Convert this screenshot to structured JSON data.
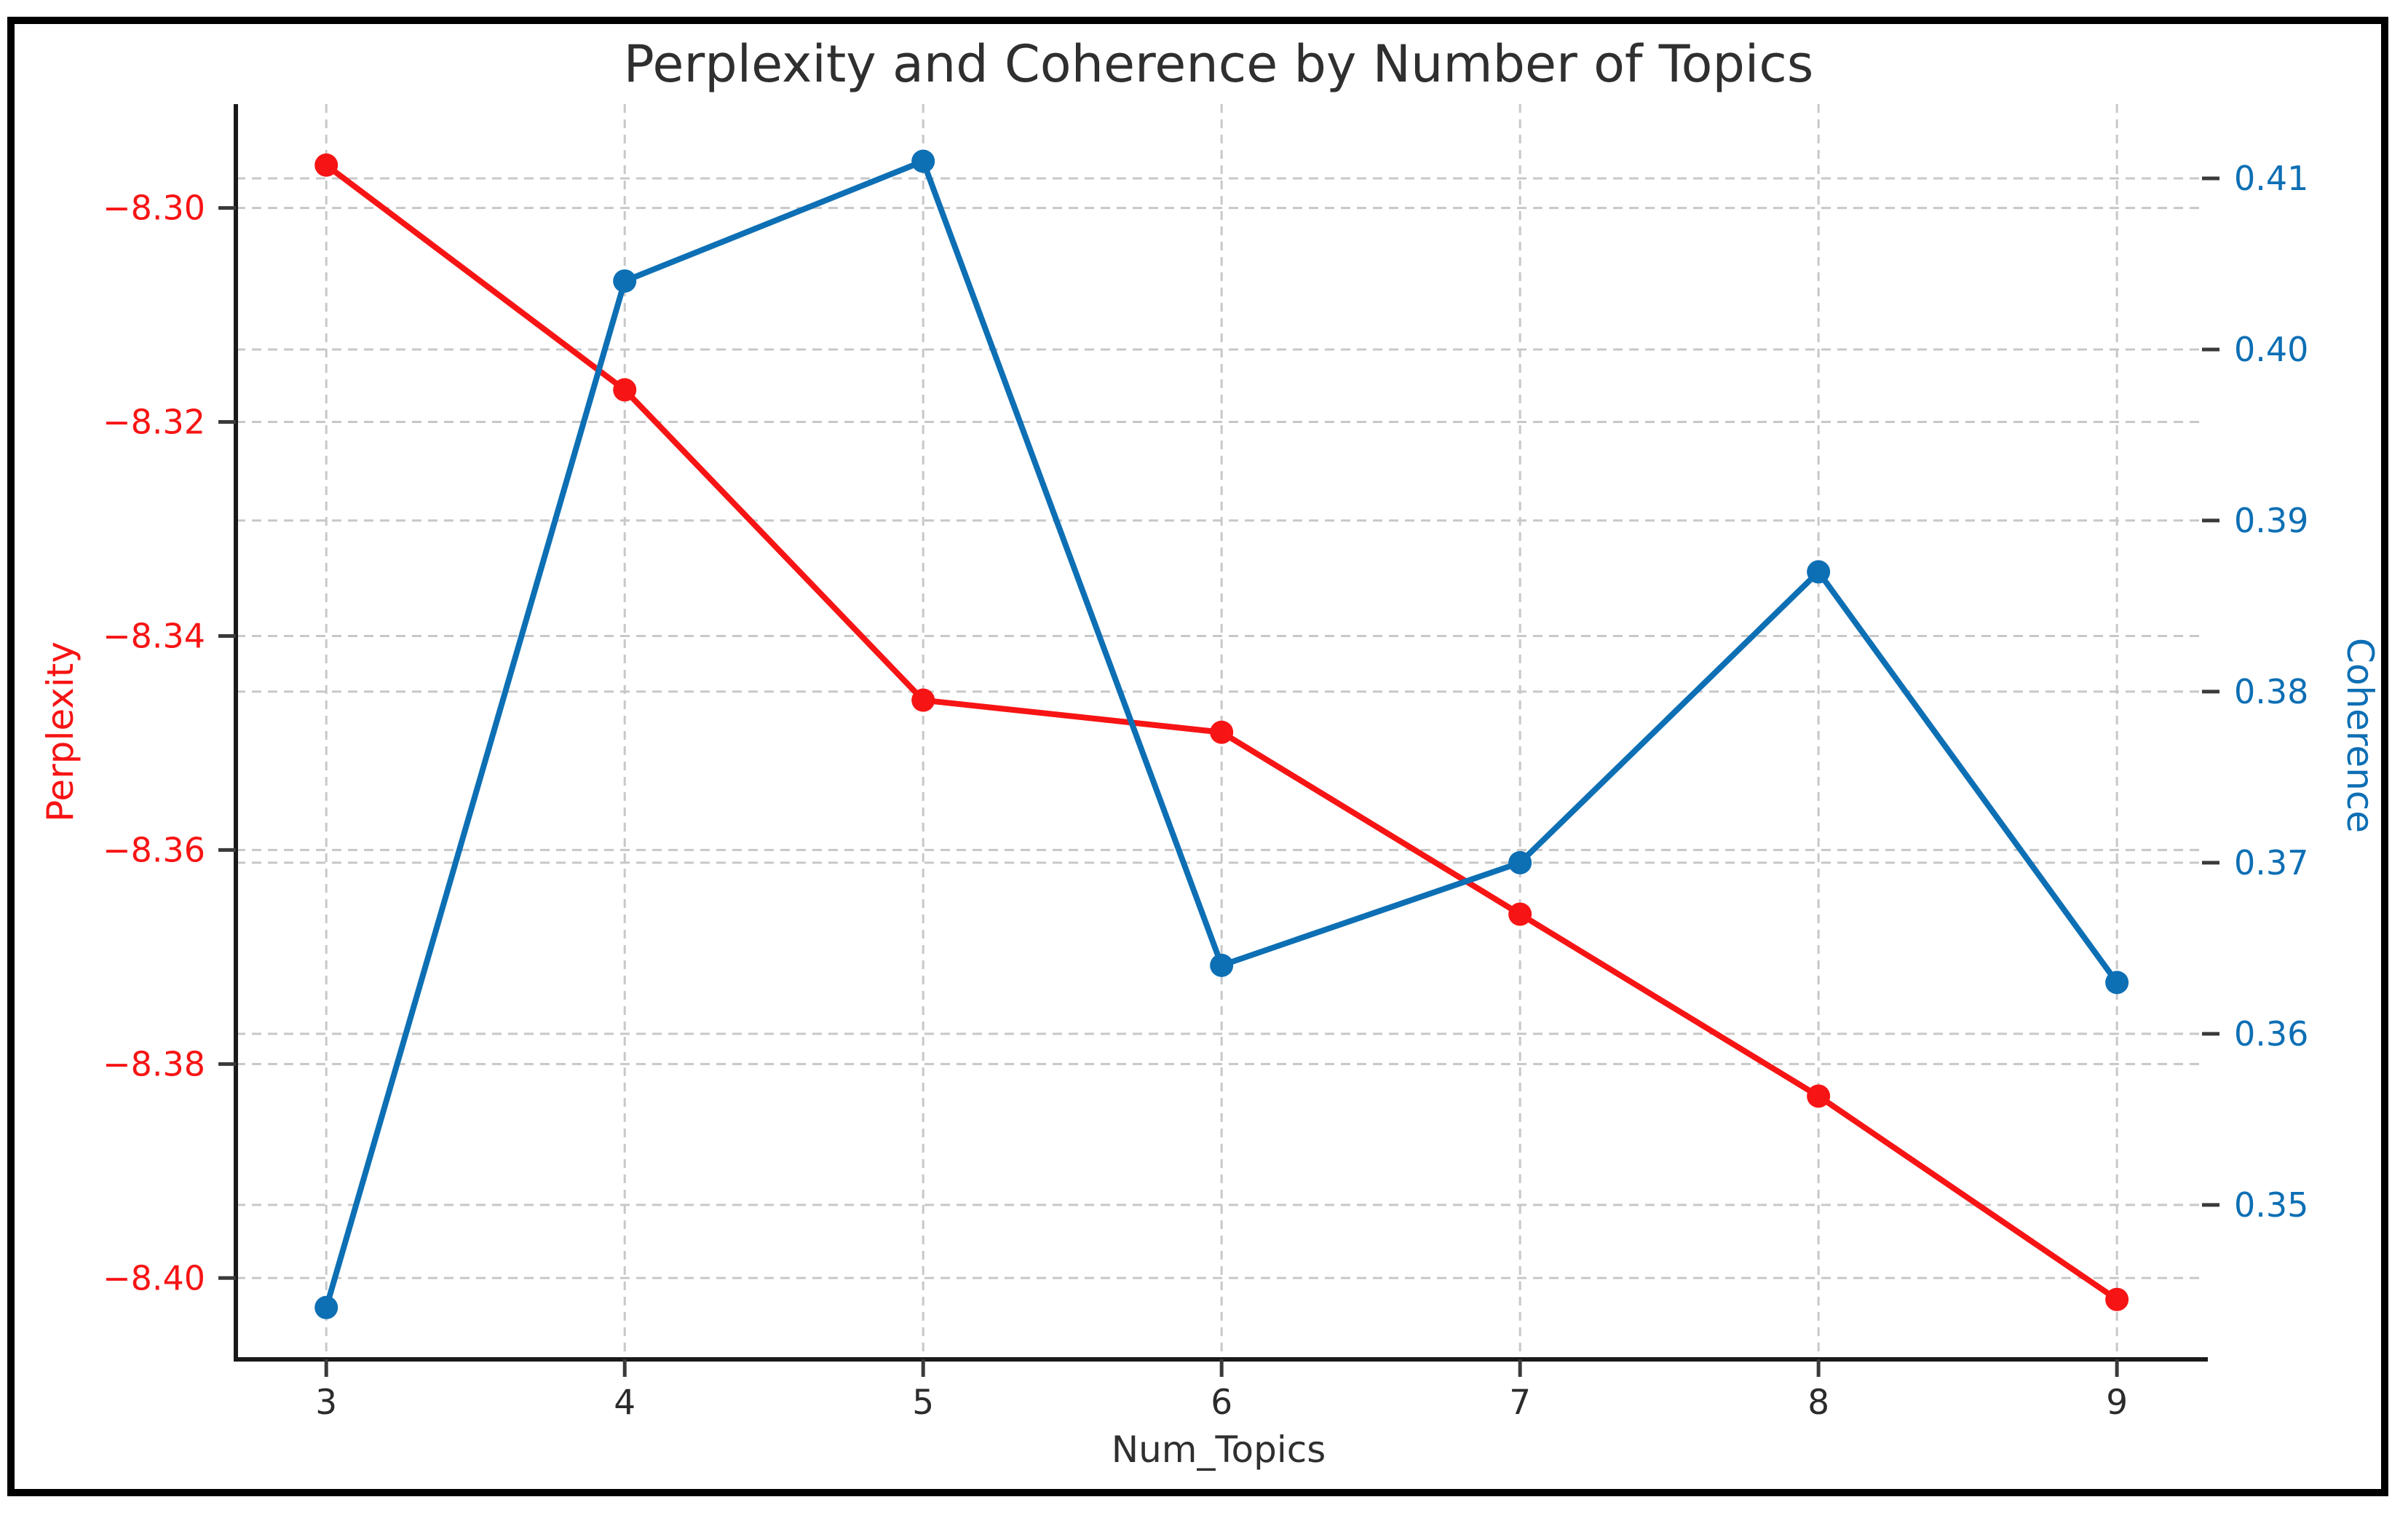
{
  "chart_data": {
    "type": "line",
    "title": "Perplexity and Coherence by Number of Topics",
    "xlabel": "Num_Topics",
    "x": [
      3,
      4,
      5,
      6,
      7,
      8,
      9
    ],
    "x_tick_labels": [
      "3",
      "4",
      "5",
      "6",
      "7",
      "8",
      "9"
    ],
    "xlim": [
      2.697,
      9.285
    ],
    "series": [
      {
        "name": "Perplexity",
        "axis": "left",
        "color": "#f71414",
        "marker": "circle",
        "values": [
          -8.296,
          -8.317,
          -8.346,
          -8.349,
          -8.366,
          -8.383,
          -8.402
        ]
      },
      {
        "name": "Coherence",
        "axis": "right",
        "color": "#0d6fb4",
        "marker": "circle",
        "values": [
          0.344,
          0.404,
          0.411,
          0.364,
          0.37,
          0.387,
          0.363
        ]
      }
    ],
    "left_axis": {
      "label": "Perplexity",
      "color": "#f71414",
      "ticks": [
        -8.3,
        -8.32,
        -8.34,
        -8.36,
        -8.38,
        -8.4
      ],
      "tick_labels": [
        "−8.30",
        "−8.32",
        "−8.34",
        "−8.36",
        "−8.38",
        "−8.40"
      ],
      "ylim": [
        -8.4076,
        -8.2903
      ]
    },
    "right_axis": {
      "label": "Coherence",
      "color": "#0d6fb4",
      "ticks": [
        0.41,
        0.4,
        0.39,
        0.38,
        0.37,
        0.36,
        0.35
      ],
      "tick_labels": [
        "0.41",
        "0.40",
        "0.39",
        "0.38",
        "0.37",
        "0.36",
        "0.35"
      ],
      "ylim": [
        0.34097,
        0.41434
      ]
    },
    "grid": {
      "on": true,
      "color": "#c8c8c8",
      "style": "dashed"
    },
    "legend": "none"
  },
  "styles": {
    "background": "#ffffff",
    "frame_color": "#000000",
    "title_color": "#2f2f2f",
    "xlabel_color": "#2f2f2f",
    "x_tick_color": "#2b2b2b",
    "spine_color": "#1a1a1a",
    "tick_mark_color": "#3a3a3a"
  }
}
